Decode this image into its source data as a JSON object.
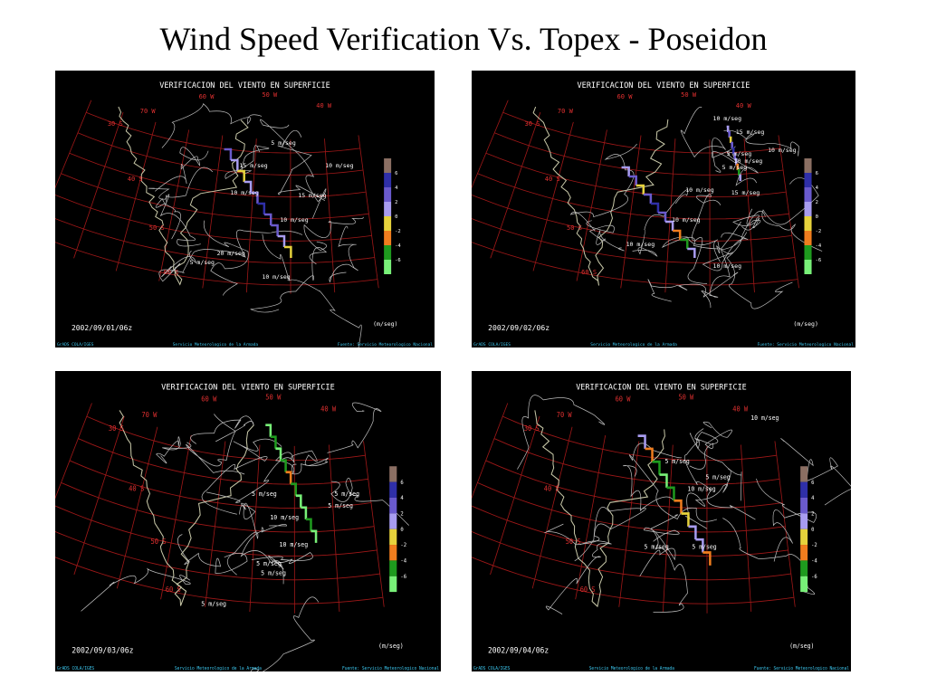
{
  "title": "Wind Speed Verification Vs. Topex - Poseidon",
  "colorbar_colors": [
    "#8b6f63",
    "#2f2fa8",
    "#6a5acd",
    "#a89cf0",
    "#e6d23c",
    "#f07d1e",
    "#1e9a1e",
    "#78f078"
  ],
  "panels": [
    {
      "header": "VERIFICACION DEL VIENTO EN SUPERFICIE",
      "date": "2002/09/01/06z",
      "unit": "(m/seg)",
      "credit_left": "GrADS COLA/IGES",
      "credit_center": "Servicio Meteorologico de la Armada",
      "credit_right": "Fuente: Servicio Meteorologico Nacional",
      "longitudes": [
        "70 W",
        "60 W",
        "50 W",
        "40 W"
      ],
      "latitudes": [
        "30 S",
        "40 S",
        "50 S",
        "60 S"
      ],
      "colorbar_labels": [
        6,
        4,
        2,
        0,
        -2,
        -4,
        -6
      ],
      "contour_labels": [
        "5 m/seg",
        "15 m/seg",
        "10 m/seg",
        "10 m/seg",
        "15 m/seg",
        "10 m/seg",
        "20 m/seg",
        "5 m/seg",
        "10 m/seg"
      ]
    },
    {
      "header": "VERIFICACION DEL VIENTO EN SUPERFICIE",
      "date": "2002/09/02/06z",
      "unit": "(m/seg)",
      "credit_left": "GrADS COLA/IGES",
      "credit_center": "Servicio Meteorologico de la Armada",
      "credit_right": "Fuente: Servicio Meteorologico Nacional",
      "longitudes": [
        "70 W",
        "60 W",
        "50 W",
        "40 W"
      ],
      "latitudes": [
        "30 S",
        "40 S",
        "50 S",
        "60 S"
      ],
      "colorbar_labels": [
        6,
        4,
        2,
        0,
        -2,
        -4,
        -6
      ],
      "contour_labels": [
        "10 m/seg",
        "15 m/seg",
        "5 m/seg",
        "10 m/seg",
        "10 m/seg",
        "5 m/seg",
        "10 m/seg",
        "15 m/seg",
        "10 m/seg",
        "10 m/seg",
        "10 m/seg"
      ]
    },
    {
      "header": "VERIFICACION DEL VIENTO EN SUPERFICIE",
      "date": "2002/09/03/06z",
      "unit": "(m/seg)",
      "credit_left": "GrADS COLA/IGES",
      "credit_center": "Servicio Meteorologico de la Armada",
      "credit_right": "Fuente: Servicio Meteorologico Nacional",
      "longitudes": [
        "70 W",
        "60 W",
        "50 W",
        "40 W"
      ],
      "latitudes": [
        "30 S",
        "40 S",
        "50 S",
        "60 S"
      ],
      "colorbar_labels": [
        6,
        4,
        2,
        0,
        -2,
        -4,
        -6
      ],
      "contour_labels": [
        "5 m/seg",
        "5 m/seg",
        "5 m/seg",
        "10 m/seg",
        "10 m/seg",
        "5 m/seg",
        "5 m/seg",
        "5 m/seg"
      ]
    },
    {
      "header": "VERIFICACION DEL VIENTO EN SUPERFICIE",
      "date": "2002/09/04/06z",
      "unit": "(m/seg)",
      "credit_left": "GrADS COLA/IGES",
      "credit_center": "Servicio Meteorologico de la Armada",
      "credit_right": "Fuente: Servicio Meteorologico Nacional",
      "longitudes": [
        "70 W",
        "60 W",
        "50 W",
        "40 W"
      ],
      "latitudes": [
        "30 S",
        "40 S",
        "50 S",
        "60 S"
      ],
      "colorbar_labels": [
        6,
        4,
        2,
        0,
        -2,
        -4,
        -6
      ],
      "contour_labels": [
        "10 m/seg",
        "5 m/seg",
        "5 m/seg",
        "10 m/seg",
        "5 m/seg",
        "5 m/seg"
      ]
    }
  ]
}
